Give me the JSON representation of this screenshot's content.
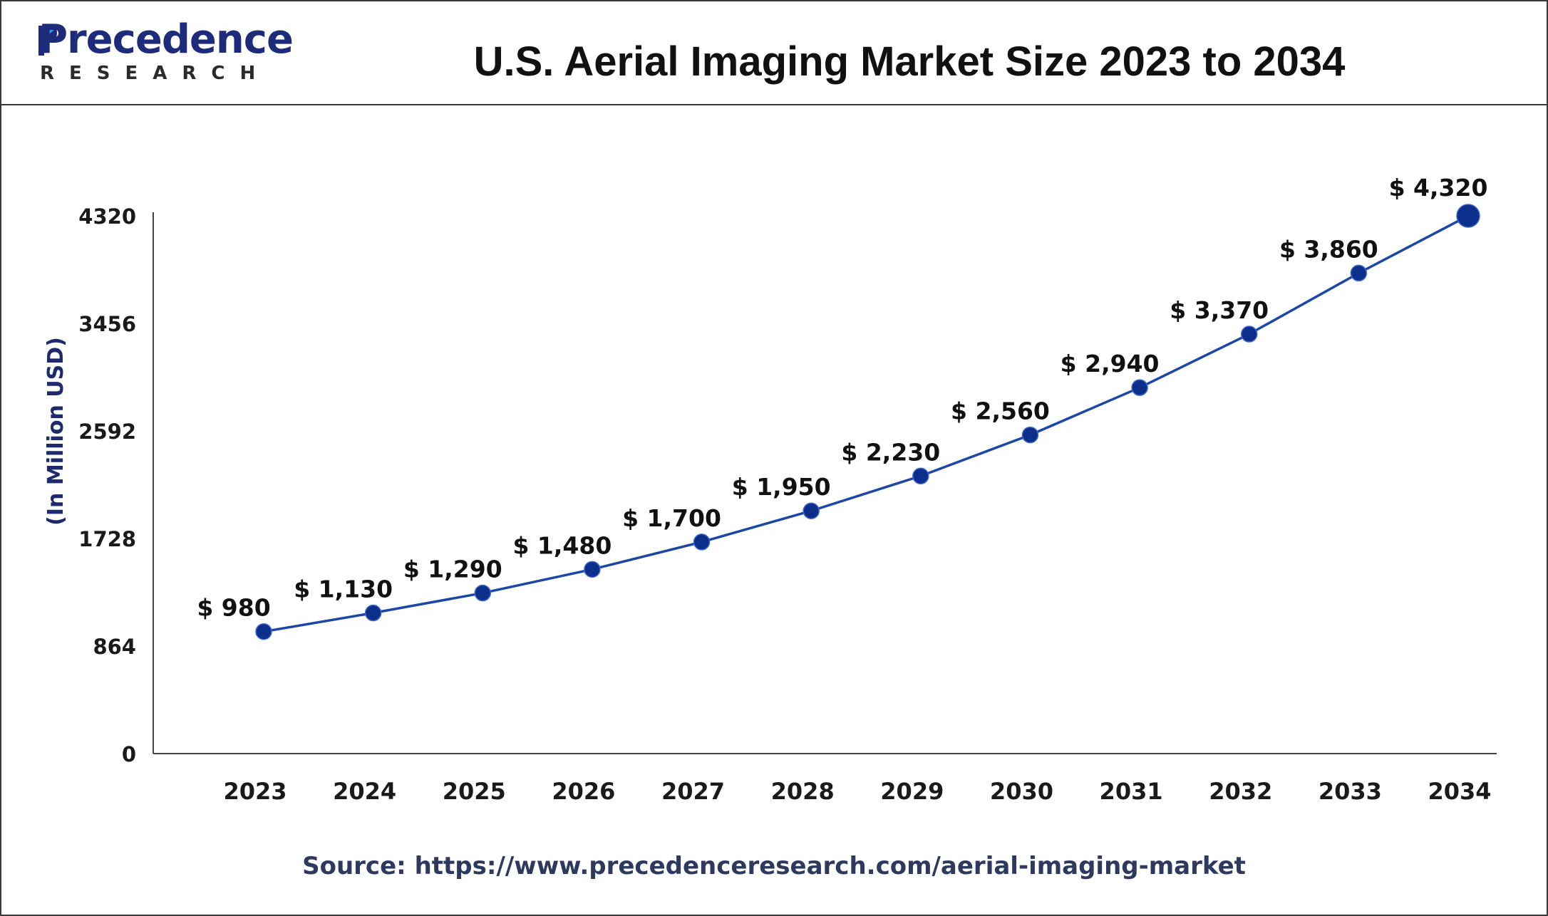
{
  "header": {
    "logo_main": "Precedence",
    "logo_sub": "RESEARCH",
    "title": "U.S. Aerial Imaging Market Size 2023 to 2034"
  },
  "footer": {
    "source": "Source: https://www.precedenceresearch.com/aerial-imaging-market"
  },
  "colors": {
    "line": "#1c47a6",
    "marker": "#0d2f8c",
    "axis_text": "#1a1a1a",
    "ylabel": "#1d2b6e",
    "brand": "#1d2b7a"
  },
  "chart_data": {
    "type": "line",
    "title": "U.S. Aerial Imaging Market Size 2023 to 2034",
    "xlabel": "",
    "ylabel": "(In Million USD)",
    "categories": [
      "2023",
      "2024",
      "2025",
      "2026",
      "2027",
      "2028",
      "2029",
      "2030",
      "2031",
      "2032",
      "2033",
      "2034"
    ],
    "values": [
      980,
      1130,
      1290,
      1480,
      1700,
      1950,
      2230,
      2560,
      2940,
      3370,
      3860,
      4320
    ],
    "data_labels": [
      "$ 980",
      "$ 1,130",
      "$ 1,290",
      "$ 1,480",
      "$ 1,700",
      "$ 1,950",
      "$ 2,230",
      "$ 2,560",
      "$ 2,940",
      "$ 3,370",
      "$ 3,860",
      "$ 4,320"
    ],
    "yticks": [
      0,
      864,
      1728,
      2592,
      3456,
      4320
    ],
    "ylim": [
      0,
      4320
    ],
    "grid": false,
    "legend": "none"
  }
}
